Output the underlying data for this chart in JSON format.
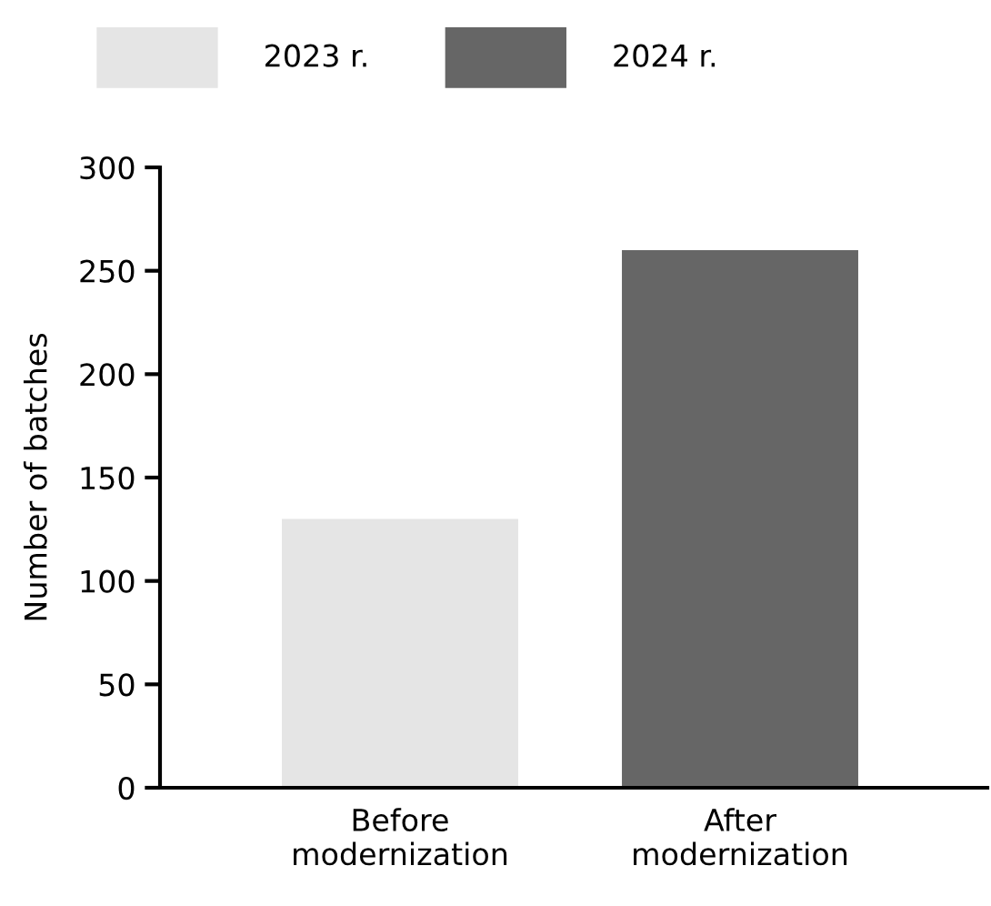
{
  "chart_data": {
    "type": "bar",
    "ylabel": "Number of batches",
    "categories": [
      "Before\nmodernization",
      "After\nmodernization"
    ],
    "series": [
      {
        "name": "2023 r.",
        "color": "#e5e5e5",
        "values": [
          130,
          null
        ]
      },
      {
        "name": "2024 r.",
        "color": "#666666",
        "values": [
          null,
          260
        ]
      }
    ],
    "stacked": true,
    "ylim": [
      0,
      300
    ],
    "yticks": [
      0,
      50,
      100,
      150,
      200,
      250,
      300
    ],
    "grid": false,
    "legend": "top left"
  }
}
